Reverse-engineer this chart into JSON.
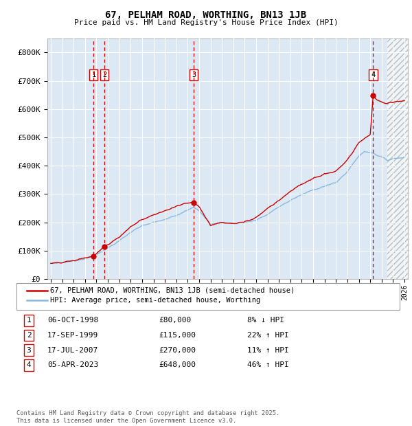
{
  "title1": "67, PELHAM ROAD, WORTHING, BN13 1JB",
  "title2": "Price paid vs. HM Land Registry's House Price Index (HPI)",
  "ylim": [
    0,
    850000
  ],
  "yticks": [
    0,
    100000,
    200000,
    300000,
    400000,
    500000,
    600000,
    700000,
    800000
  ],
  "ytick_labels": [
    "£0",
    "£100K",
    "£200K",
    "£300K",
    "£400K",
    "£500K",
    "£600K",
    "£700K",
    "£800K"
  ],
  "xlim_left": 1994.7,
  "xlim_right": 2026.3,
  "sale_dates_num": [
    1998.76,
    1999.71,
    2007.54,
    2023.26
  ],
  "sale_prices": [
    80000,
    115000,
    270000,
    648000
  ],
  "sale_labels": [
    "1",
    "2",
    "3",
    "4"
  ],
  "sale_color": "#cc0000",
  "hpi_color": "#88b8e0",
  "background_color": "#dce9f5",
  "grid_color": "#ffffff",
  "vline_color": "#cc0000",
  "hatch_start": 2024.5,
  "legend_line1": "67, PELHAM ROAD, WORTHING, BN13 1JB (semi-detached house)",
  "legend_line2": "HPI: Average price, semi-detached house, Worthing",
  "table_data": [
    {
      "num": "1",
      "date": "06-OCT-1998",
      "price": "£80,000",
      "hpi": "8% ↓ HPI"
    },
    {
      "num": "2",
      "date": "17-SEP-1999",
      "price": "£115,000",
      "hpi": "22% ↑ HPI"
    },
    {
      "num": "3",
      "date": "17-JUL-2007",
      "price": "£270,000",
      "hpi": "11% ↑ HPI"
    },
    {
      "num": "4",
      "date": "05-APR-2023",
      "price": "£648,000",
      "hpi": "46% ↑ HPI"
    }
  ],
  "footnote": "Contains HM Land Registry data © Crown copyright and database right 2025.\nThis data is licensed under the Open Government Licence v3.0."
}
